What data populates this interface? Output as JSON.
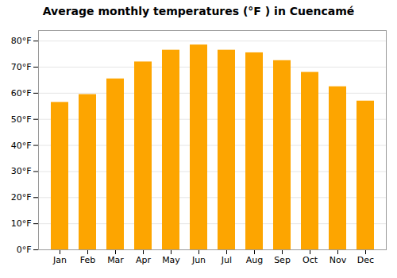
{
  "chart_data": {
    "type": "bar",
    "title": "Average monthly temperatures (°F ) in Cuencamé",
    "categories": [
      "Jan",
      "Feb",
      "Mar",
      "Apr",
      "May",
      "Jun",
      "Jul",
      "Aug",
      "Sep",
      "Oct",
      "Nov",
      "Dec"
    ],
    "values": [
      56.5,
      59.5,
      65.5,
      72.0,
      76.5,
      78.5,
      76.5,
      75.5,
      72.5,
      68.0,
      62.5,
      57.0
    ],
    "color": "#FDA500",
    "ylim": [
      0,
      84
    ],
    "yticks": [
      {
        "value": 0,
        "label": "0°F"
      },
      {
        "value": 10,
        "label": "10°F"
      },
      {
        "value": 20,
        "label": "20°F"
      },
      {
        "value": 30,
        "label": "30°F"
      },
      {
        "value": 40,
        "label": "40°F"
      },
      {
        "value": 50,
        "label": "50°F"
      },
      {
        "value": 60,
        "label": "60°F"
      },
      {
        "value": 70,
        "label": "70°F"
      },
      {
        "value": 80,
        "label": "80°F"
      }
    ],
    "grid": true
  }
}
